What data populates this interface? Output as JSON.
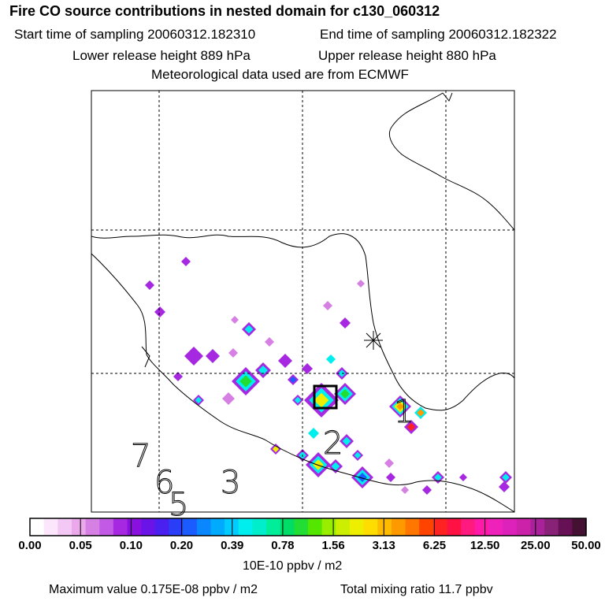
{
  "header": {
    "title": "Fire CO source contributions in nested domain for c130_060312",
    "start_time": "Start time of sampling 20060312.182310",
    "end_time": "End time of sampling 20060312.182322",
    "lower_release": "Lower release height  889 hPa",
    "upper_release": "Upper release height  880 hPa",
    "meteo": "Meteorological data used are from ECMWF"
  },
  "chart_data": {
    "type": "heatmap",
    "title": "Fire CO source contributions in nested domain for c130_060312",
    "colorbar": {
      "units": "10E-10 ppbv / m2",
      "tick_labels": [
        "0.00",
        "0.05",
        "0.10",
        "0.20",
        "0.39",
        "0.78",
        "1.56",
        "3.13",
        "6.25",
        "12.50",
        "25.00",
        "50.00"
      ],
      "colors": [
        "#ffffff",
        "#fbe6fb",
        "#f4c8f4",
        "#eba8eb",
        "#d780e4",
        "#c25ae6",
        "#a628e0",
        "#8a10e0",
        "#6a14e8",
        "#4a20f0",
        "#2a3ef8",
        "#1a5cff",
        "#0a86ff",
        "#00aaff",
        "#00ccff",
        "#00eeee",
        "#00eecc",
        "#00ee99",
        "#00dd66",
        "#22dd33",
        "#55e600",
        "#99ee00",
        "#ccee00",
        "#eeee00",
        "#ffdd00",
        "#ffbb00",
        "#ff9900",
        "#ff7700",
        "#ff4400",
        "#ff2222",
        "#ff1144",
        "#ff1a80",
        "#ff1aaa",
        "#ee22bb",
        "#dd22bb",
        "#cc22aa",
        "#aa2299",
        "#882277",
        "#661155",
        "#441133"
      ]
    },
    "map_labels": [
      "1",
      "2",
      "3",
      "5",
      "6",
      "7"
    ],
    "source_marker": "release box",
    "site_marker": "asterisk"
  },
  "footer": {
    "max_value": "Maximum value  0.175E-08 ppbv / m2",
    "total_mixing": "Total mixing ratio       11.7 ppbv"
  }
}
